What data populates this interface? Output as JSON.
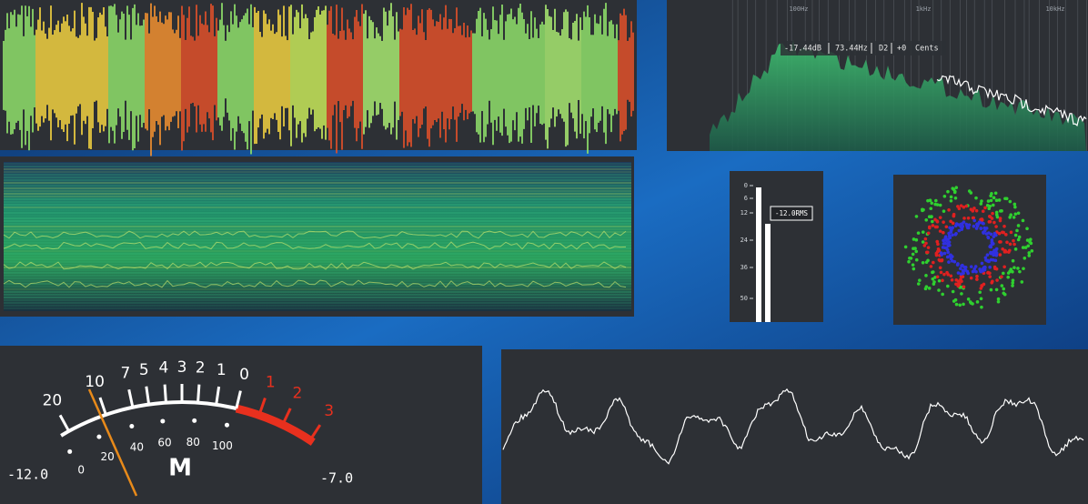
{
  "spectrum": {
    "freq_labels": [
      "100Hz",
      "1kHz",
      "10kHz"
    ],
    "readout": [
      "-17.44dB",
      "73.44Hz",
      "D2",
      "+0",
      "Cents"
    ]
  },
  "level_meter": {
    "scale": [
      "0",
      "6",
      "12",
      "24",
      "36",
      "50"
    ],
    "rms_label": "-12.0RMS"
  },
  "vu_meter": {
    "db_scale": [
      "20",
      "10",
      "7",
      "5",
      "4",
      "3",
      "2",
      "1",
      "0"
    ],
    "red_scale": [
      "1",
      "2",
      "3"
    ],
    "percent_scale": [
      "0",
      "20",
      "40",
      "60",
      "80",
      "100"
    ],
    "mode": "M",
    "left_value": "-12.0",
    "right_value": "-7.0"
  }
}
